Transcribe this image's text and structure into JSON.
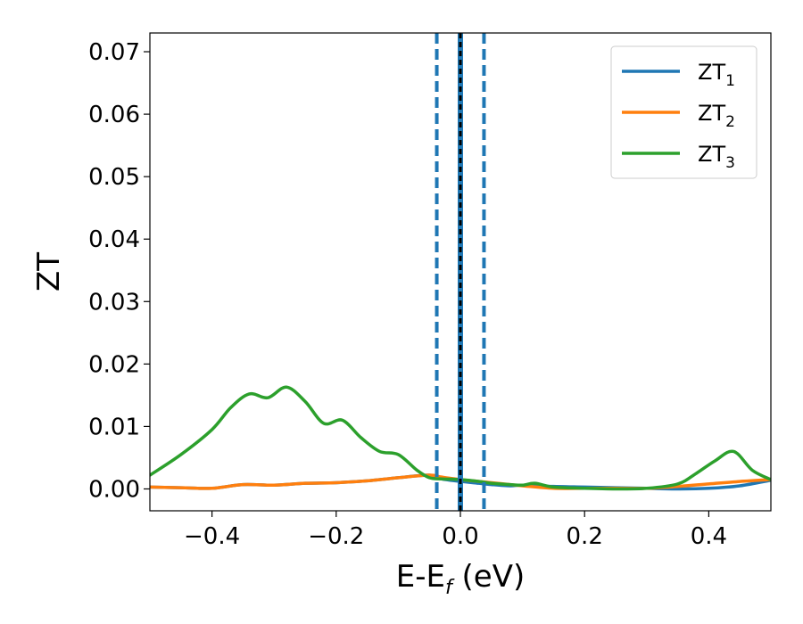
{
  "chart_data": {
    "type": "line",
    "xlabel": "E-E",
    "xlabel_sub": "f",
    "xlabel_suffix": " (eV)",
    "ylabel": "ZT",
    "xlim": [
      -0.5,
      0.5
    ],
    "ylim": [
      -0.0035,
      0.073
    ],
    "xticks": [
      -0.4,
      -0.2,
      0.0,
      0.2,
      0.4
    ],
    "xtick_labels": [
      "−0.4",
      "−0.2",
      "0.0",
      "0.2",
      "0.4"
    ],
    "yticks": [
      0.0,
      0.01,
      0.02,
      0.03,
      0.04,
      0.05,
      0.06,
      0.07
    ],
    "ytick_labels": [
      "0.00",
      "0.01",
      "0.02",
      "0.03",
      "0.04",
      "0.05",
      "0.06",
      "0.07"
    ],
    "grid": false,
    "legend_position": "top-right",
    "series": [
      {
        "name": "ZT",
        "name_sub": "1",
        "color": "#1f77b4",
        "x": [
          -0.5,
          -0.45,
          -0.4,
          -0.35,
          -0.3,
          -0.25,
          -0.2,
          -0.15,
          -0.1,
          -0.05,
          -0.03,
          0.0,
          0.03,
          0.05,
          0.08,
          0.1,
          0.15,
          0.2,
          0.25,
          0.3,
          0.35,
          0.4,
          0.45,
          0.5
        ],
        "y": [
          0.0003,
          0.0002,
          0.0001,
          0.0007,
          0.0006,
          0.0009,
          0.001,
          0.0013,
          0.0018,
          0.0022,
          0.0016,
          0.0012,
          0.0009,
          0.0007,
          0.0005,
          0.0006,
          0.0004,
          0.0003,
          0.0002,
          0.0001,
          0.0,
          0.0001,
          0.0005,
          0.0014
        ]
      },
      {
        "name": "ZT",
        "name_sub": "2",
        "color": "#ff7f0e",
        "x": [
          -0.5,
          -0.45,
          -0.4,
          -0.35,
          -0.3,
          -0.25,
          -0.2,
          -0.15,
          -0.1,
          -0.05,
          -0.03,
          0.0,
          0.03,
          0.05,
          0.08,
          0.1,
          0.15,
          0.2,
          0.25,
          0.3,
          0.35,
          0.4,
          0.45,
          0.5
        ],
        "y": [
          0.0003,
          0.0002,
          0.0001,
          0.0007,
          0.0006,
          0.0009,
          0.001,
          0.0013,
          0.0018,
          0.0022,
          0.0019,
          0.0015,
          0.0012,
          0.001,
          0.0007,
          0.0005,
          0.0001,
          0.0001,
          0.0001,
          0.0001,
          0.0004,
          0.0008,
          0.0012,
          0.0015
        ]
      },
      {
        "name": "ZT",
        "name_sub": "3",
        "color": "#2ca02c",
        "x": [
          -0.5,
          -0.45,
          -0.4,
          -0.37,
          -0.34,
          -0.31,
          -0.28,
          -0.25,
          -0.22,
          -0.19,
          -0.16,
          -0.13,
          -0.1,
          -0.07,
          -0.05,
          -0.03,
          0.0,
          0.03,
          0.05,
          0.08,
          0.1,
          0.12,
          0.15,
          0.2,
          0.25,
          0.3,
          0.35,
          0.38,
          0.41,
          0.44,
          0.47,
          0.5
        ],
        "y": [
          0.0022,
          0.0055,
          0.0095,
          0.013,
          0.0152,
          0.0146,
          0.0163,
          0.014,
          0.0105,
          0.011,
          0.0082,
          0.006,
          0.0055,
          0.003,
          0.0018,
          0.0016,
          0.0015,
          0.0012,
          0.0009,
          0.0007,
          0.0006,
          0.0009,
          0.0003,
          0.0001,
          0.0,
          0.0001,
          0.0008,
          0.0025,
          0.0045,
          0.006,
          0.003,
          0.0015
        ]
      }
    ],
    "vertical_lines": [
      {
        "x": 0.0,
        "color": "#1f77b4",
        "style": "solid",
        "width": 6
      },
      {
        "x": 0.0,
        "color": "#000000",
        "style": "dashed",
        "width": 3
      },
      {
        "x": -0.038,
        "color": "#1f77b4",
        "style": "dashed",
        "width": 4
      },
      {
        "x": 0.038,
        "color": "#1f77b4",
        "style": "dashed",
        "width": 4
      }
    ]
  }
}
